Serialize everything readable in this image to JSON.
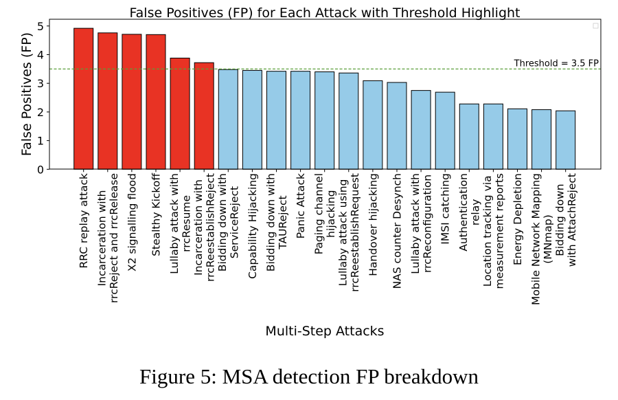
{
  "chart_data": {
    "type": "bar",
    "title": "False Positives (FP) for Each Attack with Threshold Highlight",
    "xlabel": "Multi-Step Attacks",
    "ylabel": "False Positives (FP)",
    "ylim": [
      0,
      5.2
    ],
    "yticks": [
      0,
      1,
      2,
      3,
      4,
      5
    ],
    "grid": false,
    "legend": "top-right (empty)",
    "threshold": {
      "value": 3.5,
      "label": "Threshold = 3.5 FP",
      "color": "#5a9e3a"
    },
    "colors": {
      "above": "#e83324",
      "below": "#96cbe8",
      "edge": "#000000"
    },
    "categories": [
      "RRC replay attack",
      "Incarceration with\nrrcReject and rrcRelease",
      "X2 signalling flood",
      "Stealthy Kickoff",
      "Lullaby attack with\nrrcResume",
      "Incarceration with\nrrcReestablishReject",
      "Bidding down with\nServiceReject",
      "Capability Hijacking",
      "Bidding down with\nTAUReject",
      "Panic Attack",
      "Paging channel\nhijacking",
      "Lullaby attack using\nrrcReestablishRequest",
      "Handover hijacking",
      "NAS counter Desynch",
      "Lullaby attack with\nrrcReconfiguration",
      "IMSI catching",
      "Authentication\nrelay",
      "Location tracking via\nmeasurement reports",
      "Energy Depletion",
      "Mobile Network Mapping\n(MNmap)",
      "Bidding down\nwith AttachReject"
    ],
    "values": [
      4.92,
      4.76,
      4.71,
      4.7,
      3.88,
      3.72,
      3.48,
      3.45,
      3.42,
      3.42,
      3.4,
      3.36,
      3.09,
      3.03,
      2.75,
      2.69,
      2.28,
      2.28,
      2.11,
      2.08,
      2.04
    ]
  },
  "caption": "Figure 5: MSA detection FP breakdown"
}
